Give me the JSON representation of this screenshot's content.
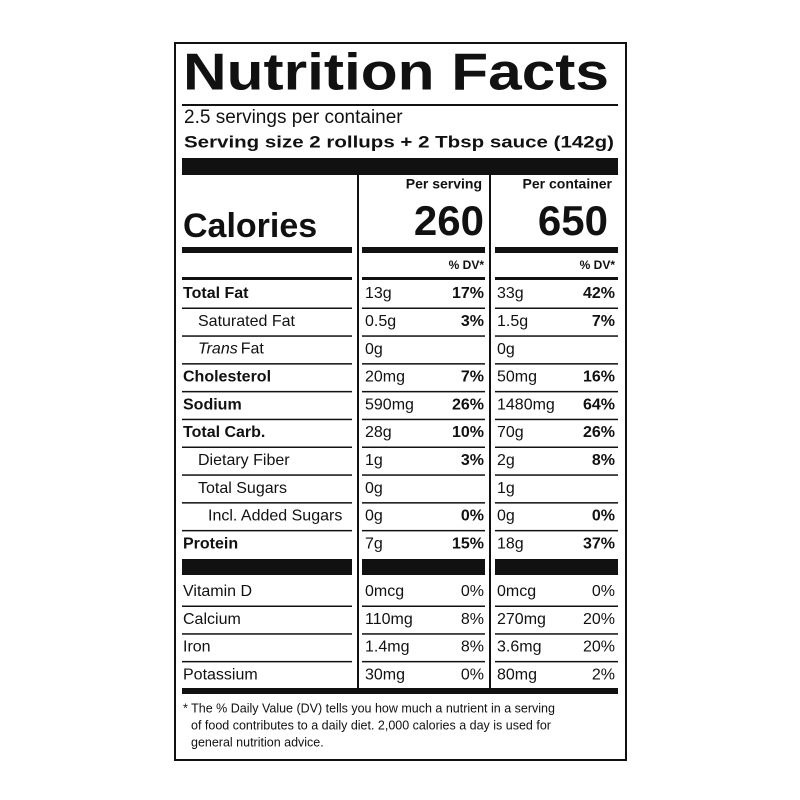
{
  "title": "Nutrition Facts",
  "servings": "2.5 servings per container",
  "serving_size": "Serving size 2 rollups + 2 Tbsp sauce (142g)",
  "columns": [
    "Per serving",
    "Per container"
  ],
  "calories": {
    "label": "Calories",
    "values": [
      260,
      650
    ]
  },
  "dv_header": [
    "% DV*",
    "% DV*"
  ],
  "nutrients": [
    {
      "name": "Total Fat",
      "bold": true,
      "indent": 0,
      "serving": [
        "13g",
        "17%"
      ],
      "container": [
        "33g",
        "42%"
      ]
    },
    {
      "name": "Saturated Fat",
      "bold": false,
      "indent": 1,
      "serving": [
        "0.5g",
        "3%"
      ],
      "container": [
        "1.5g",
        "7%"
      ]
    },
    {
      "italic": "Trans",
      "name": "Fat",
      "bold": false,
      "indent": 1,
      "serving": [
        "0g"
      ],
      "container": [
        "0g"
      ]
    },
    {
      "name": "Cholesterol",
      "bold": true,
      "indent": 0,
      "serving": [
        "20mg",
        "7%"
      ],
      "container": [
        "50mg",
        "16%"
      ]
    },
    {
      "name": "Sodium",
      "bold": true,
      "indent": 0,
      "serving": [
        "590mg",
        "26%"
      ],
      "container": [
        "1480mg",
        "64%"
      ]
    },
    {
      "name": "Total Carb.",
      "bold": true,
      "indent": 0,
      "serving": [
        "28g",
        "10%"
      ],
      "container": [
        "70g",
        "26%"
      ]
    },
    {
      "name": "Dietary Fiber",
      "bold": false,
      "indent": 1,
      "serving": [
        "1g",
        "3%"
      ],
      "container": [
        "2g",
        "8%"
      ]
    },
    {
      "name": "Total Sugars",
      "bold": false,
      "indent": 1,
      "serving": [
        "0g"
      ],
      "container": [
        "1g"
      ]
    },
    {
      "name": "Incl. Added Sugars",
      "bold": false,
      "indent": 2,
      "serving": [
        "0g",
        "0%"
      ],
      "container": [
        "0g",
        "0%"
      ]
    },
    {
      "name": "Protein",
      "bold": true,
      "indent": 0,
      "serving": [
        "7g",
        "15%"
      ],
      "container": [
        "18g",
        "37%"
      ]
    }
  ],
  "vitamins": [
    {
      "name": "Vitamin D",
      "serving": [
        "0mcg",
        "0%"
      ],
      "container": [
        "0mcg",
        "0%"
      ]
    },
    {
      "name": "Calcium",
      "serving": [
        "110mg",
        "8%"
      ],
      "container": [
        "270mg",
        "20%"
      ]
    },
    {
      "name": "Iron",
      "serving": [
        "1.4mg",
        "8%"
      ],
      "container": [
        "3.6mg",
        "20%"
      ]
    },
    {
      "name": "Potassium",
      "serving": [
        "30mg",
        "0%"
      ],
      "container": [
        "80mg",
        "2%"
      ]
    }
  ],
  "footnote": [
    "* The % Daily Value (DV) tells you how much a nutrient in a serving",
    "of food contributes to a daily diet. 2,000 calories a day is used for",
    "general nutrition advice."
  ]
}
